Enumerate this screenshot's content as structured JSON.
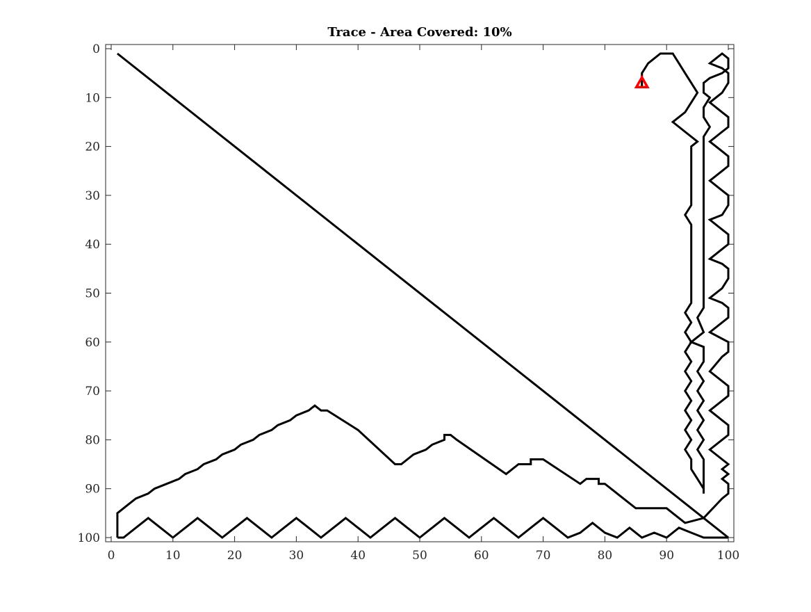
{
  "chart_data": {
    "type": "line",
    "title": "Trace - Area Covered: 10%",
    "xlabel": "",
    "ylabel": "",
    "xlim": [
      0,
      100
    ],
    "ylim": [
      0,
      100
    ],
    "y_reversed": true,
    "grid": false,
    "x_ticks": [
      0,
      10,
      20,
      30,
      40,
      50,
      60,
      70,
      80,
      90,
      100
    ],
    "y_ticks": [
      0,
      10,
      20,
      30,
      40,
      50,
      60,
      70,
      80,
      90,
      100
    ],
    "x_tick_labels": [
      "0",
      "10",
      "20",
      "30",
      "40",
      "50",
      "60",
      "70",
      "80",
      "90",
      "100"
    ],
    "y_tick_labels": [
      "0",
      "10",
      "20",
      "30",
      "40",
      "50",
      "60",
      "70",
      "80",
      "90",
      "100"
    ],
    "series": [
      {
        "line_color": "#000000",
        "points": [
          [
            1,
            100
          ],
          [
            1,
            95
          ],
          [
            2,
            94
          ],
          [
            3,
            93
          ],
          [
            4,
            92
          ],
          [
            6,
            91
          ],
          [
            7,
            90
          ],
          [
            9,
            89
          ],
          [
            11,
            88
          ],
          [
            12,
            87
          ],
          [
            14,
            86
          ],
          [
            15,
            85
          ],
          [
            17,
            84
          ],
          [
            18,
            83
          ],
          [
            20,
            82
          ],
          [
            21,
            81
          ],
          [
            23,
            80
          ],
          [
            24,
            79
          ],
          [
            26,
            78
          ],
          [
            27,
            77
          ],
          [
            29,
            76
          ],
          [
            30,
            75
          ],
          [
            32,
            74
          ],
          [
            33,
            73
          ],
          [
            34,
            74
          ],
          [
            35,
            74
          ],
          [
            40,
            78
          ],
          [
            46,
            85
          ],
          [
            47,
            85
          ],
          [
            48,
            84
          ],
          [
            49,
            83
          ],
          [
            51,
            82
          ],
          [
            52,
            81
          ],
          [
            54,
            80
          ],
          [
            54,
            79
          ],
          [
            55,
            79
          ],
          [
            56,
            80
          ],
          [
            64,
            87
          ],
          [
            65,
            86
          ],
          [
            66,
            85
          ],
          [
            68,
            85
          ],
          [
            68,
            84
          ],
          [
            70,
            84
          ],
          [
            76,
            89
          ],
          [
            77,
            88
          ],
          [
            79,
            88
          ],
          [
            79,
            89
          ],
          [
            80,
            89
          ],
          [
            85,
            94
          ],
          [
            90,
            94
          ],
          [
            91,
            95
          ],
          [
            92,
            96
          ],
          [
            93,
            97
          ],
          [
            96,
            96
          ],
          [
            99,
            92
          ],
          [
            100,
            91
          ],
          [
            100,
            89
          ],
          [
            99,
            88
          ],
          [
            100,
            87
          ],
          [
            99,
            86
          ],
          [
            100,
            85
          ],
          [
            99,
            84
          ],
          [
            97,
            82
          ],
          [
            99,
            80
          ],
          [
            100,
            79
          ],
          [
            100,
            77
          ],
          [
            99,
            76
          ],
          [
            97,
            74
          ],
          [
            99,
            72
          ],
          [
            100,
            71
          ],
          [
            100,
            69
          ],
          [
            97,
            66
          ],
          [
            99,
            63
          ],
          [
            100,
            62
          ],
          [
            100,
            60
          ],
          [
            97,
            58
          ],
          [
            99,
            56
          ],
          [
            100,
            55
          ],
          [
            100,
            53
          ],
          [
            99,
            52
          ],
          [
            97,
            51
          ],
          [
            99,
            49
          ],
          [
            100,
            47
          ],
          [
            100,
            45
          ],
          [
            99,
            44
          ],
          [
            97,
            43
          ],
          [
            99,
            41
          ],
          [
            100,
            40
          ],
          [
            100,
            38
          ],
          [
            99,
            37
          ],
          [
            97,
            35
          ],
          [
            99,
            34
          ],
          [
            100,
            32
          ],
          [
            100,
            30
          ],
          [
            99,
            29
          ],
          [
            97,
            27
          ],
          [
            99,
            25
          ],
          [
            100,
            24
          ],
          [
            100,
            22
          ],
          [
            99,
            21
          ],
          [
            97,
            19
          ],
          [
            99,
            17
          ],
          [
            100,
            16
          ],
          [
            100,
            14
          ],
          [
            99,
            13
          ],
          [
            97,
            11
          ],
          [
            99,
            9
          ],
          [
            100,
            7
          ],
          [
            100,
            5
          ],
          [
            99,
            4
          ],
          [
            97,
            3
          ],
          [
            98,
            2
          ],
          [
            99,
            1
          ],
          [
            100,
            2
          ],
          [
            100,
            4
          ],
          [
            99,
            5
          ],
          [
            97,
            6
          ],
          [
            96,
            7
          ],
          [
            96,
            9
          ],
          [
            97,
            10
          ],
          [
            96,
            12
          ],
          [
            96,
            14
          ],
          [
            97,
            16
          ],
          [
            96,
            18
          ],
          [
            96,
            21
          ],
          [
            96,
            25
          ],
          [
            96,
            29
          ],
          [
            96,
            33
          ],
          [
            96,
            37
          ],
          [
            96,
            41
          ],
          [
            96,
            45
          ],
          [
            96,
            49
          ],
          [
            96,
            53
          ],
          [
            95,
            55
          ],
          [
            96,
            58
          ],
          [
            94,
            60
          ],
          [
            96,
            61
          ],
          [
            96,
            64
          ],
          [
            95,
            66
          ],
          [
            96,
            68
          ],
          [
            95,
            70
          ],
          [
            96,
            72
          ],
          [
            95,
            74
          ],
          [
            96,
            76
          ],
          [
            95,
            78
          ],
          [
            96,
            80
          ],
          [
            95,
            82
          ],
          [
            96,
            84
          ],
          [
            96,
            87
          ],
          [
            96,
            90
          ],
          [
            96,
            91
          ],
          [
            96,
            90
          ],
          [
            95,
            88
          ],
          [
            94,
            86
          ],
          [
            94,
            84
          ],
          [
            93,
            82
          ],
          [
            94,
            80
          ],
          [
            93,
            78
          ],
          [
            94,
            76
          ],
          [
            93,
            74
          ],
          [
            94,
            72
          ],
          [
            93,
            70
          ],
          [
            94,
            68
          ],
          [
            93,
            66
          ],
          [
            94,
            64
          ],
          [
            93,
            62
          ],
          [
            94,
            60
          ],
          [
            93,
            58
          ],
          [
            94,
            56
          ],
          [
            93,
            54
          ],
          [
            94,
            52
          ],
          [
            94,
            48
          ],
          [
            94,
            44
          ],
          [
            94,
            40
          ],
          [
            94,
            36
          ],
          [
            93,
            34
          ],
          [
            94,
            32
          ],
          [
            94,
            28
          ],
          [
            94,
            24
          ],
          [
            94,
            20
          ],
          [
            95,
            19
          ],
          [
            93,
            17
          ],
          [
            91,
            15
          ],
          [
            93,
            13
          ],
          [
            94,
            11
          ],
          [
            95,
            9
          ],
          [
            94,
            7
          ],
          [
            93,
            5
          ],
          [
            92,
            3
          ],
          [
            91,
            1
          ],
          [
            89,
            1
          ],
          [
            88,
            2
          ],
          [
            87,
            3
          ],
          [
            86,
            5
          ],
          [
            86,
            7
          ],
          [
            86,
            8
          ]
        ]
      },
      {
        "line_color": "#000000",
        "points": [
          [
            1,
            1
          ],
          [
            100,
            100
          ]
        ]
      },
      {
        "line_color": "#000000",
        "points": [
          [
            100,
            100
          ],
          [
            96,
            100
          ],
          [
            94,
            99
          ],
          [
            92,
            98
          ],
          [
            90,
            100
          ],
          [
            88,
            99
          ],
          [
            86,
            100
          ],
          [
            84,
            98
          ],
          [
            82,
            100
          ],
          [
            80,
            99
          ],
          [
            78,
            97
          ],
          [
            76,
            99
          ],
          [
            74,
            100
          ],
          [
            72,
            98
          ],
          [
            70,
            96
          ],
          [
            68,
            98
          ],
          [
            66,
            100
          ],
          [
            64,
            98
          ],
          [
            62,
            96
          ],
          [
            60,
            98
          ],
          [
            58,
            100
          ],
          [
            56,
            98
          ],
          [
            54,
            96
          ],
          [
            52,
            98
          ],
          [
            50,
            100
          ],
          [
            48,
            98
          ],
          [
            46,
            96
          ],
          [
            44,
            98
          ],
          [
            42,
            100
          ],
          [
            40,
            98
          ],
          [
            38,
            96
          ],
          [
            36,
            98
          ],
          [
            34,
            100
          ],
          [
            32,
            98
          ],
          [
            30,
            96
          ],
          [
            28,
            98
          ],
          [
            26,
            100
          ],
          [
            24,
            98
          ],
          [
            22,
            96
          ],
          [
            20,
            98
          ],
          [
            18,
            100
          ],
          [
            16,
            98
          ],
          [
            14,
            96
          ],
          [
            12,
            98
          ],
          [
            10,
            100
          ],
          [
            8,
            98
          ],
          [
            6,
            96
          ],
          [
            4,
            98
          ],
          [
            2,
            100
          ],
          [
            1,
            100
          ]
        ]
      }
    ],
    "marker": {
      "shape": "triangle",
      "x": 86,
      "y": 7,
      "color": "#ff0000"
    }
  }
}
